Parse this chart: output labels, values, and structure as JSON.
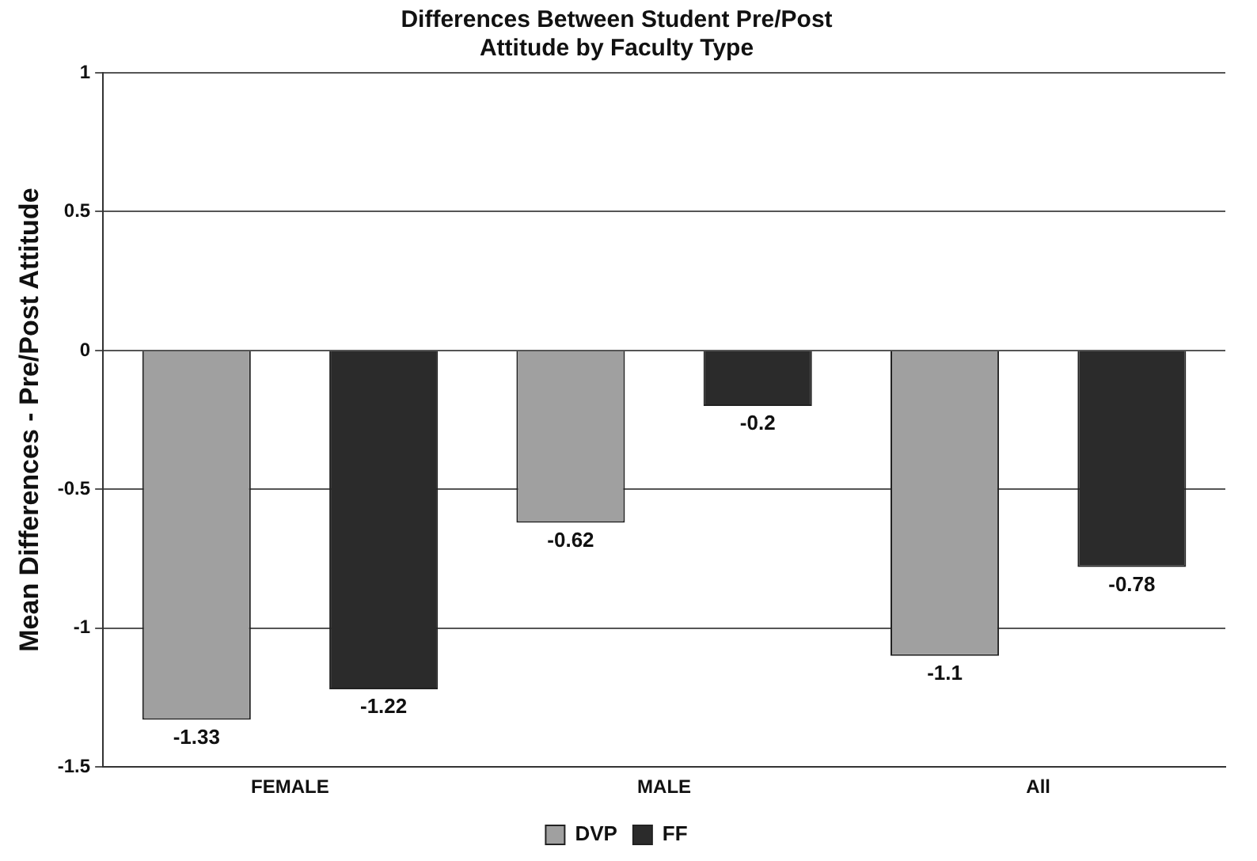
{
  "chart_data": {
    "type": "bar",
    "title": "Differences Between Student Pre/Post\nAttitude by Faculty Type",
    "ylabel": "Mean Differences - Pre/Post Attitude",
    "categories": [
      "FEMALE",
      "MALE",
      "All"
    ],
    "series": [
      {
        "name": "DVP",
        "color": "#a0a0a0",
        "values": [
          -1.33,
          -0.62,
          -1.1
        ]
      },
      {
        "name": "FF",
        "color": "#2b2b2b",
        "values": [
          -1.22,
          -0.2,
          -0.78
        ]
      }
    ],
    "ylim": [
      -1.5,
      1
    ],
    "yticks": [
      -1.5,
      -1,
      -0.5,
      0,
      0.5,
      1
    ],
    "grid": "y",
    "legend": "bottom",
    "data_labels": true
  }
}
